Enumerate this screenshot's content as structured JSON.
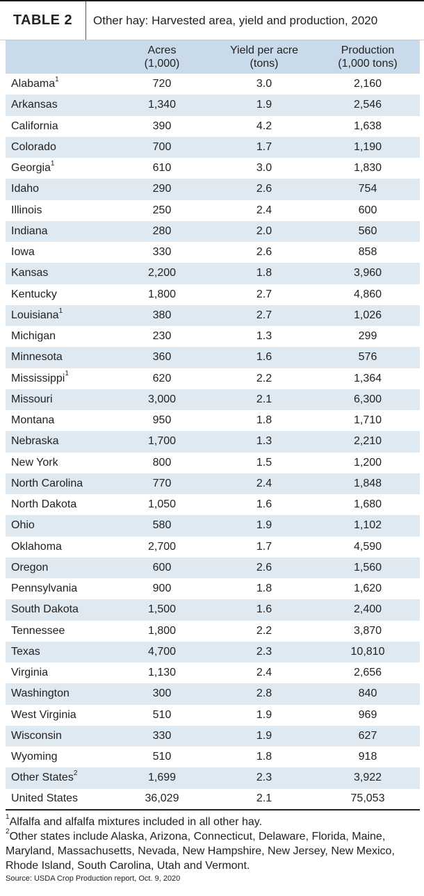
{
  "header": {
    "tag": "TABLE 2",
    "title": "Other hay: Harvested area, yield and production, 2020"
  },
  "columns": [
    {
      "line1": "",
      "line2": ""
    },
    {
      "line1": "Acres",
      "line2": "(1,000)"
    },
    {
      "line1": "Yield per acre",
      "line2": "(tons)"
    },
    {
      "line1": "Production",
      "line2": "(1,000 tons)"
    }
  ],
  "rows": [
    {
      "state": "Alabama",
      "note": "1",
      "acres": "720",
      "yield": "3.0",
      "production": "2,160"
    },
    {
      "state": "Arkansas",
      "note": "",
      "acres": "1,340",
      "yield": "1.9",
      "production": "2,546"
    },
    {
      "state": "California",
      "note": "",
      "acres": "390",
      "yield": "4.2",
      "production": "1,638"
    },
    {
      "state": "Colorado",
      "note": "",
      "acres": "700",
      "yield": "1.7",
      "production": "1,190"
    },
    {
      "state": "Georgia",
      "note": "1",
      "acres": "610",
      "yield": "3.0",
      "production": "1,830"
    },
    {
      "state": "Idaho",
      "note": "",
      "acres": "290",
      "yield": "2.6",
      "production": "754"
    },
    {
      "state": "Illinois",
      "note": "",
      "acres": "250",
      "yield": "2.4",
      "production": "600"
    },
    {
      "state": "Indiana",
      "note": "",
      "acres": "280",
      "yield": "2.0",
      "production": "560"
    },
    {
      "state": "Iowa",
      "note": "",
      "acres": "330",
      "yield": "2.6",
      "production": "858"
    },
    {
      "state": "Kansas",
      "note": "",
      "acres": "2,200",
      "yield": "1.8",
      "production": "3,960"
    },
    {
      "state": "Kentucky",
      "note": "",
      "acres": "1,800",
      "yield": "2.7",
      "production": "4,860"
    },
    {
      "state": "Louisiana",
      "note": "1",
      "acres": "380",
      "yield": "2.7",
      "production": "1,026"
    },
    {
      "state": "Michigan",
      "note": "",
      "acres": "230",
      "yield": "1.3",
      "production": "299"
    },
    {
      "state": "Minnesota",
      "note": "",
      "acres": "360",
      "yield": "1.6",
      "production": "576"
    },
    {
      "state": "Mississippi",
      "note": "1",
      "acres": "620",
      "yield": "2.2",
      "production": "1,364"
    },
    {
      "state": "Missouri",
      "note": "",
      "acres": "3,000",
      "yield": "2.1",
      "production": "6,300"
    },
    {
      "state": "Montana",
      "note": "",
      "acres": "950",
      "yield": "1.8",
      "production": "1,710"
    },
    {
      "state": "Nebraska",
      "note": "",
      "acres": "1,700",
      "yield": "1.3",
      "production": "2,210"
    },
    {
      "state": "New York",
      "note": "",
      "acres": "800",
      "yield": "1.5",
      "production": "1,200"
    },
    {
      "state": "North Carolina",
      "note": "",
      "acres": "770",
      "yield": "2.4",
      "production": "1,848"
    },
    {
      "state": "North Dakota",
      "note": "",
      "acres": "1,050",
      "yield": "1.6",
      "production": "1,680"
    },
    {
      "state": "Ohio",
      "note": "",
      "acres": "580",
      "yield": "1.9",
      "production": "1,102"
    },
    {
      "state": "Oklahoma",
      "note": "",
      "acres": "2,700",
      "yield": "1.7",
      "production": "4,590"
    },
    {
      "state": "Oregon",
      "note": "",
      "acres": "600",
      "yield": "2.6",
      "production": "1,560"
    },
    {
      "state": "Pennsylvania",
      "note": "",
      "acres": "900",
      "yield": "1.8",
      "production": "1,620"
    },
    {
      "state": "South Dakota",
      "note": "",
      "acres": "1,500",
      "yield": "1.6",
      "production": "2,400"
    },
    {
      "state": "Tennessee",
      "note": "",
      "acres": "1,800",
      "yield": "2.2",
      "production": "3,870"
    },
    {
      "state": "Texas",
      "note": "",
      "acres": "4,700",
      "yield": "2.3",
      "production": "10,810"
    },
    {
      "state": "Virginia",
      "note": "",
      "acres": "1,130",
      "yield": "2.4",
      "production": "2,656"
    },
    {
      "state": "Washington",
      "note": "",
      "acres": "300",
      "yield": "2.8",
      "production": "840"
    },
    {
      "state": "West Virginia",
      "note": "",
      "acres": "510",
      "yield": "1.9",
      "production": "969"
    },
    {
      "state": "Wisconsin",
      "note": "",
      "acres": "330",
      "yield": "1.9",
      "production": "627"
    },
    {
      "state": "Wyoming",
      "note": "",
      "acres": "510",
      "yield": "1.8",
      "production": "918"
    },
    {
      "state": "Other States",
      "note": "2",
      "acres": "1,699",
      "yield": "2.3",
      "production": "3,922"
    },
    {
      "state": "United States",
      "note": "",
      "acres": "36,029",
      "yield": "2.1",
      "production": "75,053"
    }
  ],
  "footnotes": [
    {
      "mark": "1",
      "text": "Alfalfa and alfalfa mixtures included in all other hay."
    },
    {
      "mark": "2",
      "text": "Other states include Alaska, Arizona, Connecticut, Delaware, Florida, Maine, Maryland, Massachusetts, Nevada, New Hampshire, New Jersey, New Mexico, Rhode Island, South Carolina, Utah and Vermont."
    }
  ],
  "source": "Source: USDA Crop Production report, Oct. 9, 2020"
}
